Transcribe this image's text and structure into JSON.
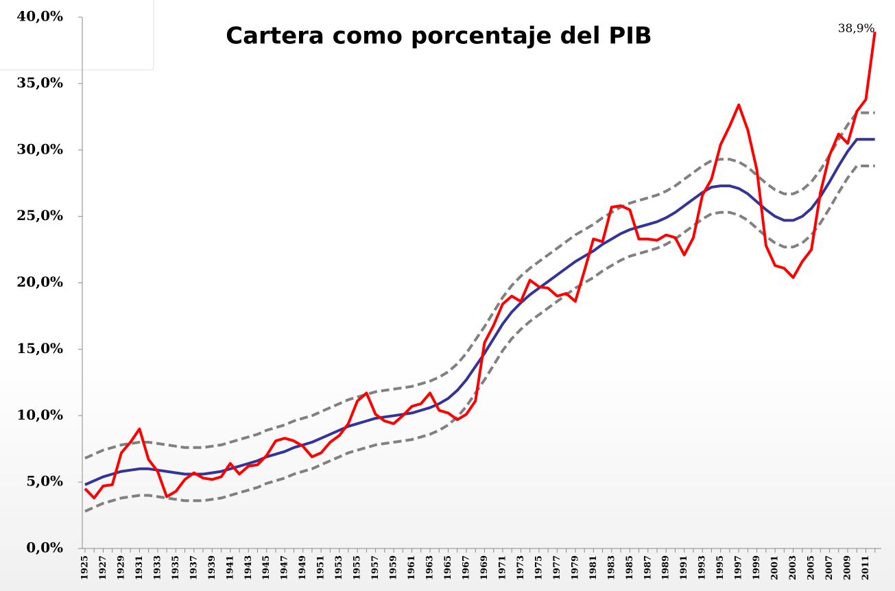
{
  "chart_data": {
    "type": "line",
    "title": "Cartera como porcentaje del PIB",
    "categories": [
      "1925",
      null,
      "1927",
      null,
      "1929",
      null,
      "1931",
      null,
      "1933",
      null,
      "1935",
      null,
      "1937",
      null,
      "1939",
      null,
      "1941",
      null,
      "1943",
      null,
      "1945",
      null,
      "1947",
      null,
      "1949",
      null,
      "1951",
      null,
      "1953",
      null,
      "1955",
      null,
      "1957",
      null,
      "1959",
      null,
      "1961",
      null,
      "1963",
      null,
      "1965",
      null,
      "1967",
      null,
      "1969",
      null,
      "1971",
      null,
      "1973",
      null,
      "1975",
      null,
      "1977",
      null,
      "1979",
      null,
      "1981",
      null,
      "1983",
      null,
      "1985",
      null,
      "1987",
      null,
      "1989",
      null,
      "1991",
      null,
      "1993",
      null,
      "1995",
      null,
      "1997",
      null,
      "1999",
      null,
      "2001",
      null,
      "2003",
      null,
      "2005",
      null,
      "2007",
      null,
      "2009",
      null,
      "2011",
      null
    ],
    "series": [
      {
        "color": "#ff0000",
        "style": "solid",
        "width": 4,
        "values": [
          4.5,
          3.8,
          4.7,
          4.8,
          7.2,
          8.0,
          9.0,
          6.7,
          5.8,
          3.9,
          4.3,
          5.2,
          5.7,
          5.3,
          5.2,
          5.4,
          6.4,
          5.6,
          6.2,
          6.3,
          7.0,
          8.1,
          8.3,
          8.1,
          7.7,
          6.9,
          7.2,
          8.0,
          8.5,
          9.4,
          11.1,
          11.7,
          10.1,
          9.6,
          9.4,
          10.0,
          10.7,
          10.9,
          11.7,
          10.4,
          10.2,
          9.7,
          10.1,
          11.1,
          15.5,
          16.8,
          18.4,
          19.0,
          18.6,
          20.2,
          19.7,
          19.6,
          19.0,
          19.2,
          18.6,
          20.9,
          23.3,
          23.1,
          25.7,
          25.8,
          25.5,
          23.3,
          23.3,
          23.2,
          23.6,
          23.4,
          22.1,
          23.4,
          26.6,
          27.8,
          30.4,
          31.8,
          33.4,
          31.5,
          28.5,
          22.8,
          21.3,
          21.1,
          20.4,
          21.6,
          22.5,
          26.8,
          29.6,
          31.2,
          30.5,
          32.9,
          33.8,
          38.9
        ],
        "value_labels": [
          null,
          null,
          null,
          null,
          null,
          null,
          null,
          null,
          null,
          null,
          null,
          null,
          null,
          null,
          null,
          null,
          null,
          null,
          null,
          null,
          null,
          null,
          null,
          null,
          null,
          null,
          null,
          null,
          null,
          null,
          null,
          null,
          null,
          null,
          null,
          null,
          null,
          null,
          null,
          null,
          null,
          null,
          null,
          null,
          null,
          null,
          null,
          null,
          null,
          null,
          null,
          null,
          null,
          null,
          null,
          null,
          null,
          null,
          null,
          null,
          null,
          null,
          null,
          null,
          null,
          null,
          null,
          null,
          null,
          null,
          null,
          null,
          null,
          null,
          null,
          null,
          null,
          null,
          null,
          null,
          null,
          null,
          null,
          null,
          null,
          null,
          null,
          "38,9%"
        ]
      },
      {
        "color": "#333399",
        "style": "solid",
        "width": 4,
        "values": [
          4.8,
          5.1,
          5.4,
          5.6,
          5.8,
          5.9,
          6.0,
          6.0,
          5.9,
          5.8,
          5.7,
          5.6,
          5.6,
          5.6,
          5.7,
          5.8,
          6.0,
          6.2,
          6.4,
          6.6,
          6.9,
          7.1,
          7.3,
          7.6,
          7.8,
          8.0,
          8.3,
          8.6,
          8.9,
          9.2,
          9.4,
          9.6,
          9.8,
          9.9,
          10.0,
          10.1,
          10.2,
          10.4,
          10.6,
          10.9,
          11.3,
          11.9,
          12.7,
          13.7,
          14.7,
          15.8,
          16.9,
          17.8,
          18.5,
          19.1,
          19.6,
          20.1,
          20.6,
          21.1,
          21.6,
          22.0,
          22.4,
          22.9,
          23.3,
          23.7,
          24.0,
          24.2,
          24.4,
          24.6,
          24.9,
          25.3,
          25.8,
          26.3,
          26.8,
          27.2,
          27.3,
          27.3,
          27.1,
          26.7,
          26.1,
          25.5,
          25.0,
          24.7,
          24.7,
          25.0,
          25.6,
          26.5,
          27.6,
          28.8,
          29.9,
          30.8,
          30.8,
          30.8
        ]
      },
      {
        "color": "#808080",
        "style": "dashed",
        "width": 4,
        "values": [
          6.8,
          7.1,
          7.4,
          7.6,
          7.8,
          7.9,
          8.0,
          8.0,
          7.9,
          7.8,
          7.7,
          7.6,
          7.6,
          7.6,
          7.7,
          7.8,
          8.0,
          8.2,
          8.4,
          8.6,
          8.9,
          9.1,
          9.3,
          9.6,
          9.8,
          10.0,
          10.3,
          10.6,
          10.9,
          11.2,
          11.4,
          11.6,
          11.8,
          11.9,
          12.0,
          12.1,
          12.2,
          12.4,
          12.6,
          12.9,
          13.3,
          13.9,
          14.7,
          15.7,
          16.7,
          17.8,
          18.9,
          19.8,
          20.5,
          21.1,
          21.6,
          22.1,
          22.6,
          23.1,
          23.6,
          24.0,
          24.4,
          24.9,
          25.3,
          25.7,
          26.0,
          26.2,
          26.4,
          26.6,
          26.9,
          27.3,
          27.8,
          28.3,
          28.8,
          29.2,
          29.3,
          29.3,
          29.1,
          28.7,
          28.1,
          27.5,
          27.0,
          26.7,
          26.7,
          27.0,
          27.6,
          28.5,
          29.6,
          30.8,
          31.9,
          32.8,
          32.8,
          32.8
        ]
      },
      {
        "color": "#808080",
        "style": "dashed",
        "width": 4,
        "values": [
          2.8,
          3.1,
          3.4,
          3.6,
          3.8,
          3.9,
          4.0,
          4.0,
          3.9,
          3.8,
          3.7,
          3.6,
          3.6,
          3.6,
          3.7,
          3.8,
          4.0,
          4.2,
          4.4,
          4.6,
          4.9,
          5.1,
          5.3,
          5.6,
          5.8,
          6.0,
          6.3,
          6.6,
          6.9,
          7.2,
          7.4,
          7.6,
          7.8,
          7.9,
          8.0,
          8.1,
          8.2,
          8.4,
          8.6,
          8.9,
          9.3,
          9.9,
          10.7,
          11.7,
          12.7,
          13.8,
          14.9,
          15.8,
          16.5,
          17.1,
          17.6,
          18.1,
          18.6,
          19.1,
          19.6,
          20.0,
          20.4,
          20.9,
          21.3,
          21.7,
          22.0,
          22.2,
          22.4,
          22.6,
          22.9,
          23.3,
          23.8,
          24.3,
          24.8,
          25.2,
          25.3,
          25.3,
          25.1,
          24.7,
          24.1,
          23.5,
          23.0,
          22.7,
          22.7,
          23.0,
          23.6,
          24.5,
          25.6,
          26.8,
          27.9,
          28.8,
          28.8,
          28.8
        ]
      }
    ],
    "ylim": [
      0,
      40
    ],
    "yticks": [
      {
        "value": 0,
        "label": "0,0%"
      },
      {
        "value": 5,
        "label": "5,0%"
      },
      {
        "value": 10,
        "label": "10,0%"
      },
      {
        "value": 15,
        "label": "15,0%"
      },
      {
        "value": 20,
        "label": "20,0%"
      },
      {
        "value": 25,
        "label": "25,0%"
      },
      {
        "value": 30,
        "label": "30,0%"
      },
      {
        "value": 35,
        "label": "35,0%"
      },
      {
        "value": 40,
        "label": "40,0%"
      }
    ],
    "grid": false
  }
}
